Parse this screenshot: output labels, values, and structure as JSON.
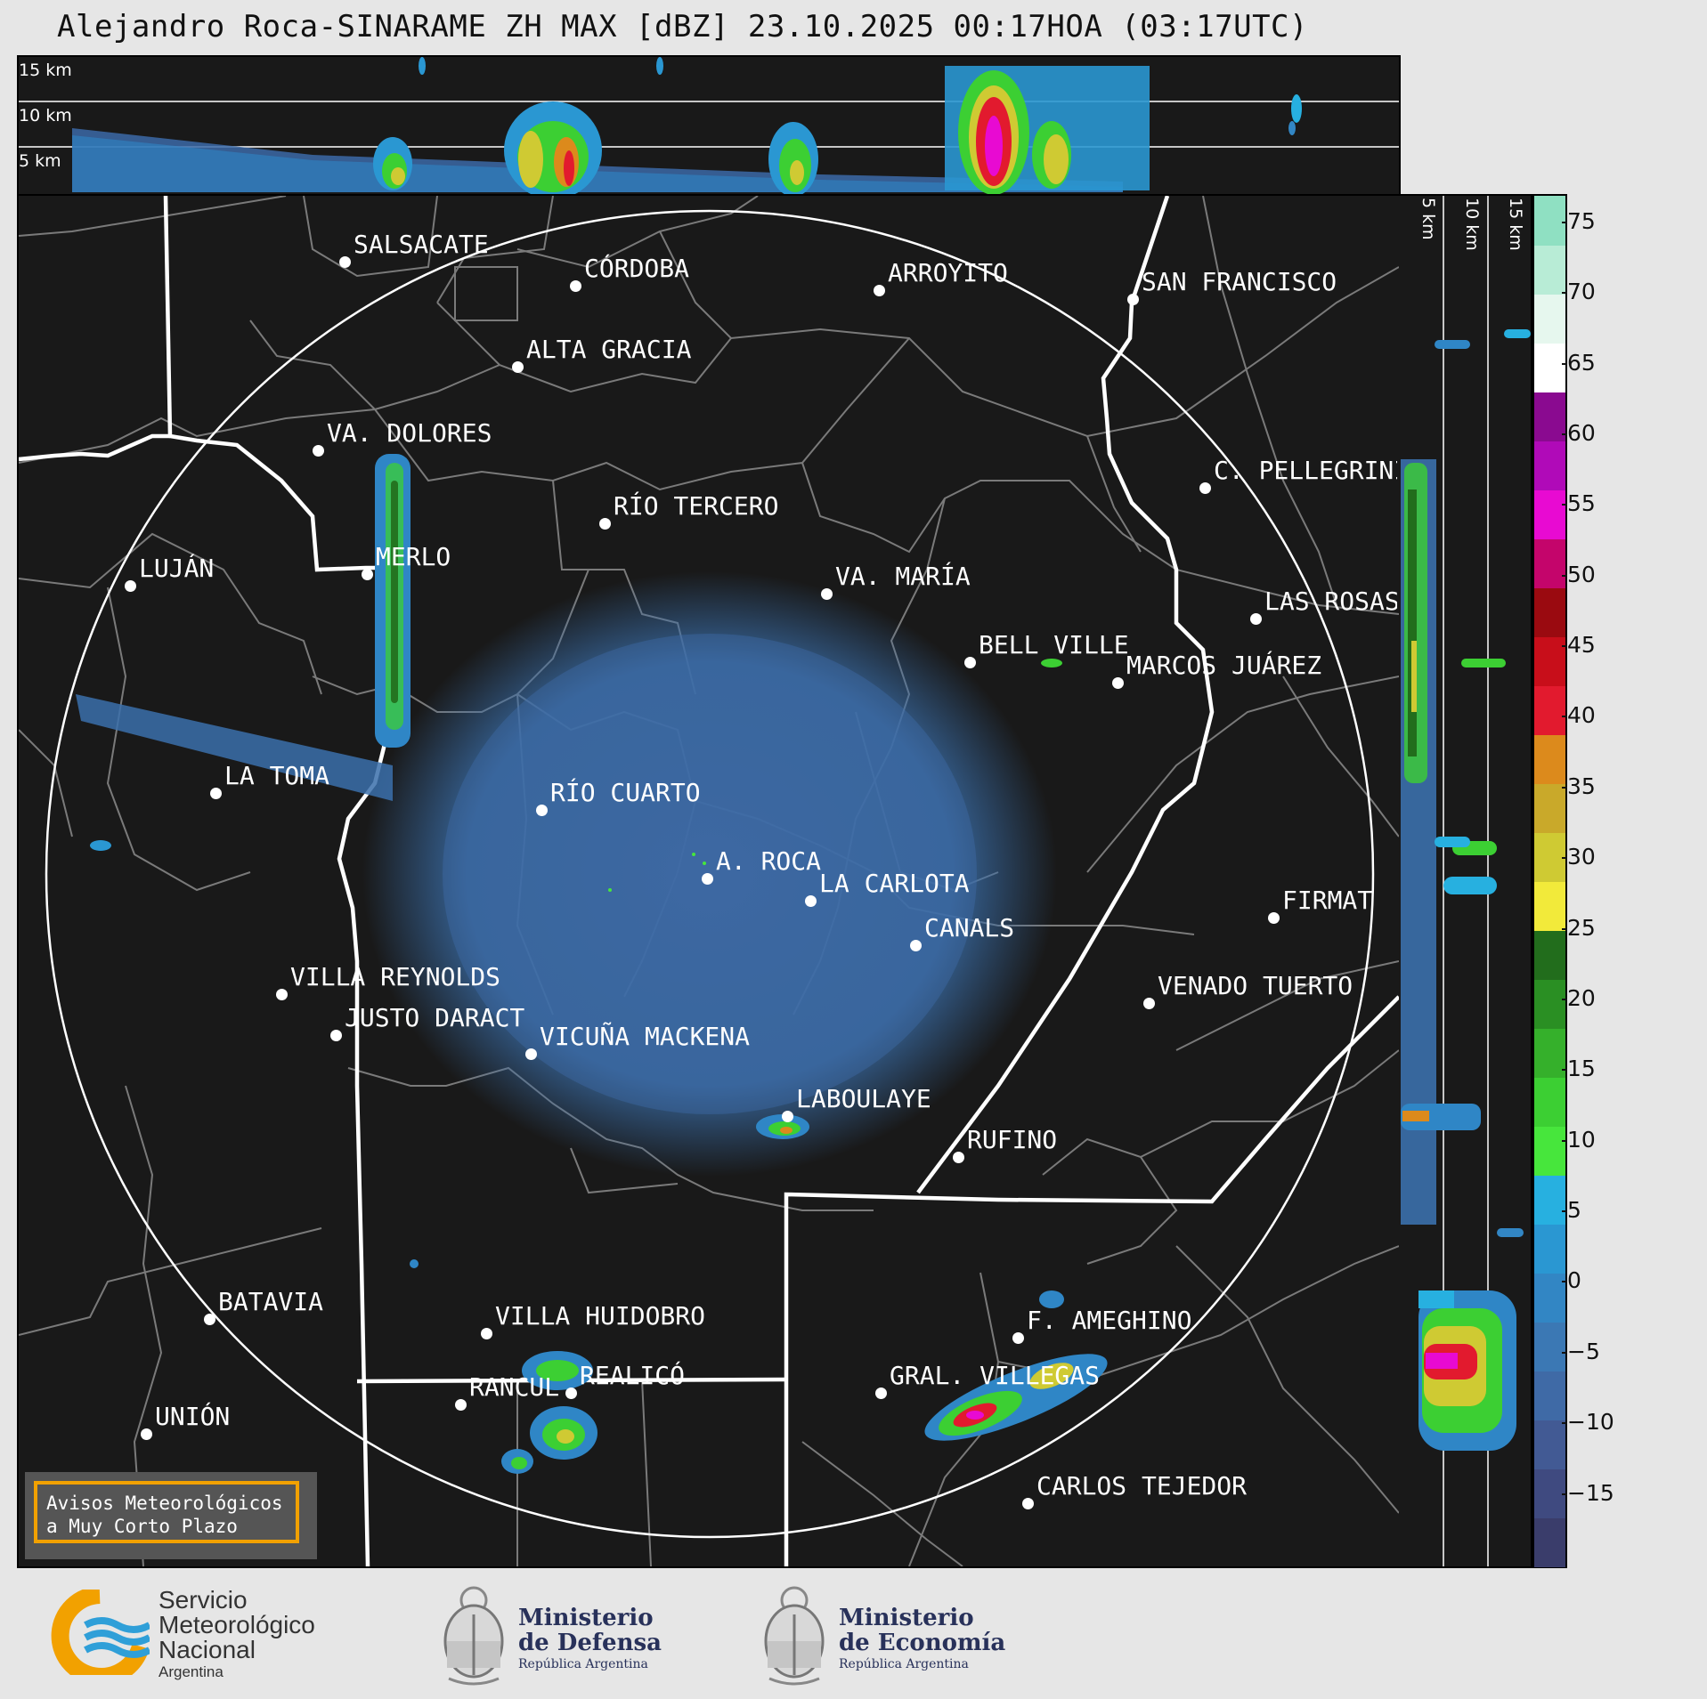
{
  "title": "Alejandro Roca-SINARAME ZH MAX [dBZ] 23.10.2025 00:17HOA (03:17UTC)",
  "top_strip": {
    "height_labels": [
      "15 km",
      "10 km",
      "5 km"
    ]
  },
  "side_strip": {
    "height_labels": [
      "5 km",
      "10 km",
      "15 km"
    ]
  },
  "colorbar": {
    "ticks": [
      "75",
      "70",
      "65",
      "60",
      "55",
      "50",
      "45",
      "40",
      "35",
      "30",
      "25",
      "20",
      "15",
      "10",
      "5",
      "0",
      "−5",
      "−10",
      "−15"
    ],
    "range_dbz": [
      -20,
      77
    ],
    "colors": [
      "#3a3d6b",
      "#3f4a80",
      "#425a94",
      "#3f6aa6",
      "#3b78b4",
      "#3286c4",
      "#2a97d2",
      "#27b0e0",
      "#47e63c",
      "#3ccf33",
      "#35b02b",
      "#2a8f23",
      "#226d1c",
      "#f2ea3a",
      "#cfca33",
      "#c9a92a",
      "#dc8a1c",
      "#e21a2e",
      "#c80e1a",
      "#9a0a10",
      "#c4056b",
      "#e80ad2",
      "#b00ab8",
      "#8a0a90",
      "#ffffff",
      "#e6f7ee",
      "#b8ecd6",
      "#8fe0c2"
    ]
  },
  "cities": [
    {
      "name": "SALSACATE"
    },
    {
      "name": "CÓRDOBA"
    },
    {
      "name": "ARROYITO"
    },
    {
      "name": "SAN FRANCISCO"
    },
    {
      "name": "ALTA GRACIA"
    },
    {
      "name": "VA. DOLORES"
    },
    {
      "name": "C. PELLEGRINI"
    },
    {
      "name": "RÍO TERCERO"
    },
    {
      "name": "LUJÁN"
    },
    {
      "name": "MERLO"
    },
    {
      "name": "VA. MARÍA"
    },
    {
      "name": "LAS ROSAS"
    },
    {
      "name": "BELL VILLE"
    },
    {
      "name": "MARCOS JUÁREZ"
    },
    {
      "name": "LA TOMA"
    },
    {
      "name": "RÍO CUARTO"
    },
    {
      "name": "A. ROCA"
    },
    {
      "name": "LA CARLOTA"
    },
    {
      "name": "FIRMAT"
    },
    {
      "name": "CANALS"
    },
    {
      "name": "VILLA REYNOLDS"
    },
    {
      "name": "VENADO TUERTO"
    },
    {
      "name": "JUSTO DARACT"
    },
    {
      "name": "VICUÑA MACKENA"
    },
    {
      "name": "LABOULAYE"
    },
    {
      "name": "RUFINO"
    },
    {
      "name": "BATAVIA"
    },
    {
      "name": "VILLA HUIDOBRO"
    },
    {
      "name": "F. AMEGHINO"
    },
    {
      "name": "REALICÓ"
    },
    {
      "name": "RANCUL"
    },
    {
      "name": "GRAL. VILLEGAS"
    },
    {
      "name": "UNIÓN"
    },
    {
      "name": "CARLOS TEJEDOR"
    }
  ],
  "notice": {
    "line1": "Avisos Meteorológicos",
    "line2": "a Muy Corto Plazo"
  },
  "logos": {
    "smn": {
      "line1": "Servicio",
      "line2": "Meteorológico",
      "line3": "Nacional",
      "line4": "Argentina"
    },
    "defensa": {
      "line1": "Ministerio",
      "line2": "de Defensa",
      "line3": "República Argentina"
    },
    "economia": {
      "line1": "Ministerio",
      "line2": "de Economía",
      "line3": "República Argentina"
    }
  }
}
